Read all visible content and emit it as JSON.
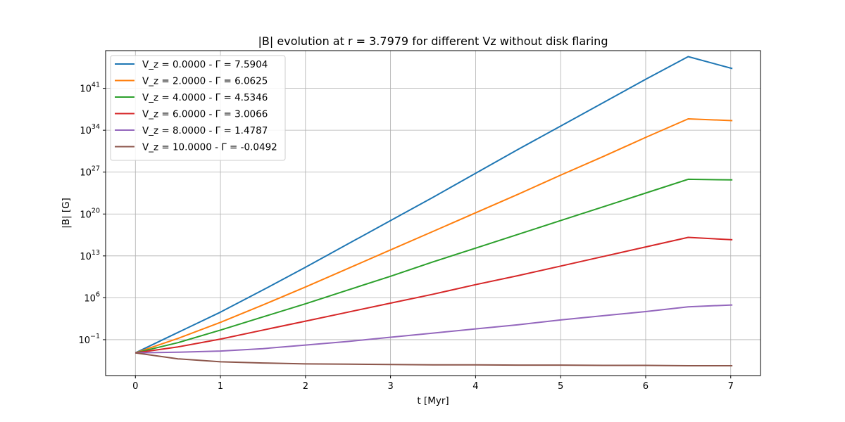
{
  "chart_data": {
    "type": "line",
    "title": "|B| evolution at r = 3.7979 for different Vz without disk flaring",
    "xlabel": "t [Myr]",
    "ylabel": "|B| [G]",
    "xlim": [
      -0.35,
      7.35
    ],
    "ylim_log10": [
      -7.0,
      47.3
    ],
    "yscale": "log",
    "grid": true,
    "legend_position": "top-left",
    "x_ticks": [
      0,
      1,
      2,
      3,
      4,
      5,
      6,
      7
    ],
    "y_ticks": [
      {
        "log10": -1,
        "base": "10",
        "exp": "−1"
      },
      {
        "log10": 6,
        "base": "10",
        "exp": "6"
      },
      {
        "log10": 13,
        "base": "10",
        "exp": "13"
      },
      {
        "log10": 20,
        "base": "10",
        "exp": "20"
      },
      {
        "log10": 27,
        "base": "10",
        "exp": "27"
      },
      {
        "log10": 34,
        "base": "10",
        "exp": "34"
      },
      {
        "log10": 41,
        "base": "10",
        "exp": "41"
      }
    ],
    "x": [
      0,
      0.5,
      1,
      1.5,
      2,
      2.5,
      3,
      3.5,
      4,
      4.5,
      5,
      5.5,
      6,
      6.5,
      7.02
    ],
    "series": [
      {
        "name": "V_z = 0.0000 - Γ = 7.5904",
        "color": "#1f77b4",
        "log10_values": [
          -3.2,
          0.2,
          3.6,
          7.3,
          11.1,
          15.0,
          18.9,
          22.8,
          26.8,
          30.8,
          34.7,
          38.6,
          42.5,
          46.3,
          44.3
        ]
      },
      {
        "name": "V_z = 2.0000 - Γ = 6.0625",
        "color": "#ff7f0e",
        "log10_values": [
          -3.2,
          -0.8,
          1.9,
          4.8,
          7.8,
          10.9,
          14.0,
          17.1,
          20.2,
          23.3,
          26.5,
          29.6,
          32.8,
          35.9,
          35.6
        ]
      },
      {
        "name": "V_z = 4.0000 - Γ = 4.5346",
        "color": "#2ca02c",
        "log10_values": [
          -3.2,
          -1.5,
          0.6,
          2.8,
          5.0,
          7.3,
          9.6,
          12.0,
          14.3,
          16.6,
          18.9,
          21.2,
          23.5,
          25.8,
          25.7
        ]
      },
      {
        "name": "V_z = 6.0000 - Γ = 3.0066",
        "color": "#d62728",
        "log10_values": [
          -3.2,
          -2.2,
          -0.9,
          0.6,
          2.1,
          3.6,
          5.1,
          6.6,
          8.2,
          9.7,
          11.3,
          12.9,
          14.5,
          16.1,
          15.7
        ]
      },
      {
        "name": "V_z = 8.0000 - Γ = 1.4787",
        "color": "#9467bd",
        "log10_values": [
          -3.2,
          -3.1,
          -2.9,
          -2.5,
          -1.9,
          -1.3,
          -0.6,
          0.1,
          0.8,
          1.5,
          2.3,
          3.0,
          3.7,
          4.5,
          4.8
        ]
      },
      {
        "name": "V_z = 10.0000 - Γ = -0.0492",
        "color": "#8c564b",
        "log10_values": [
          -3.2,
          -4.2,
          -4.7,
          -4.9,
          -5.05,
          -5.1,
          -5.15,
          -5.2,
          -5.2,
          -5.25,
          -5.25,
          -5.3,
          -5.3,
          -5.35,
          -5.35
        ]
      }
    ]
  }
}
